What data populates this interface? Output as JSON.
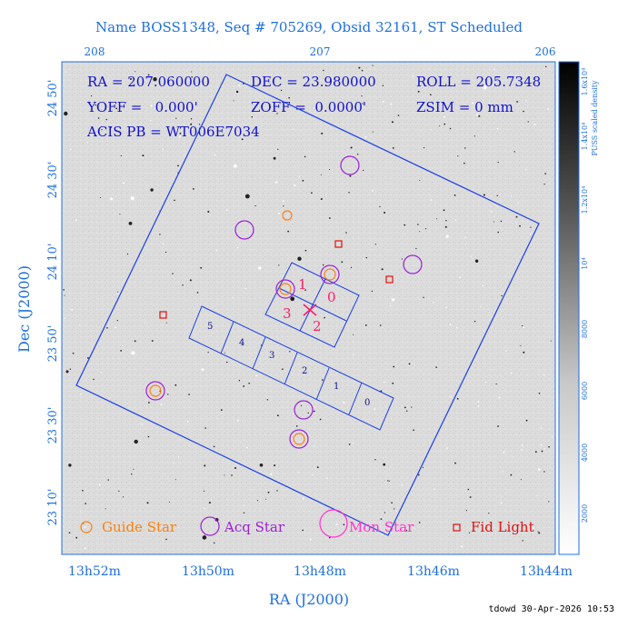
{
  "title": "Name BOSS1348, Seq # 705269, Obsid 32161, ST Scheduled",
  "header": {
    "ra": "RA = 207.060000",
    "dec": "DEC = 23.980000",
    "roll": "ROLL = 205.7348",
    "yoff": "YOFF =   0.000'",
    "zoff": "ZOFF =  0.0000'",
    "zsim": "ZSIM = 0 mm",
    "acis": "ACIS PB = WT006E7034"
  },
  "axes": {
    "x_label": "RA (J2000)",
    "y_label": "Dec (J2000)",
    "x_ticks_bottom": [
      "13h52m",
      "13h50m",
      "13h48m",
      "13h46m",
      "13h44m"
    ],
    "x_ticks_top": [
      "208",
      "207",
      "206"
    ],
    "y_ticks": [
      "24 50'",
      "24 30'",
      "24 10'",
      "23 50'",
      "23 30'",
      "23 10'"
    ]
  },
  "colorbar": {
    "label": "PUSS scaled density",
    "ticks": [
      "2000",
      "4000",
      "6000",
      "8000",
      "10⁴",
      "1.2x10⁴",
      "1.4x10⁴",
      "1.6x10⁴"
    ]
  },
  "ccds": {
    "imaging": [
      "0",
      "1",
      "2",
      "3"
    ],
    "spectroscopic": [
      "0",
      "1",
      "2",
      "3",
      "4",
      "5"
    ]
  },
  "legend": {
    "guide": "Guide Star",
    "acq": "Acq Star",
    "mon": "Mon Star",
    "fid": "Fid Light"
  },
  "colors": {
    "fov": "#1a3fe6",
    "text_blue": "#1e6fe0",
    "guide": "#ff7f0e",
    "acq": "#9b1fd6",
    "mon": "#ff33cc",
    "fid": "#e01010",
    "acis_i": "#ff1a66"
  },
  "footer": "tdowd 30-Apr-2026 10:53"
}
